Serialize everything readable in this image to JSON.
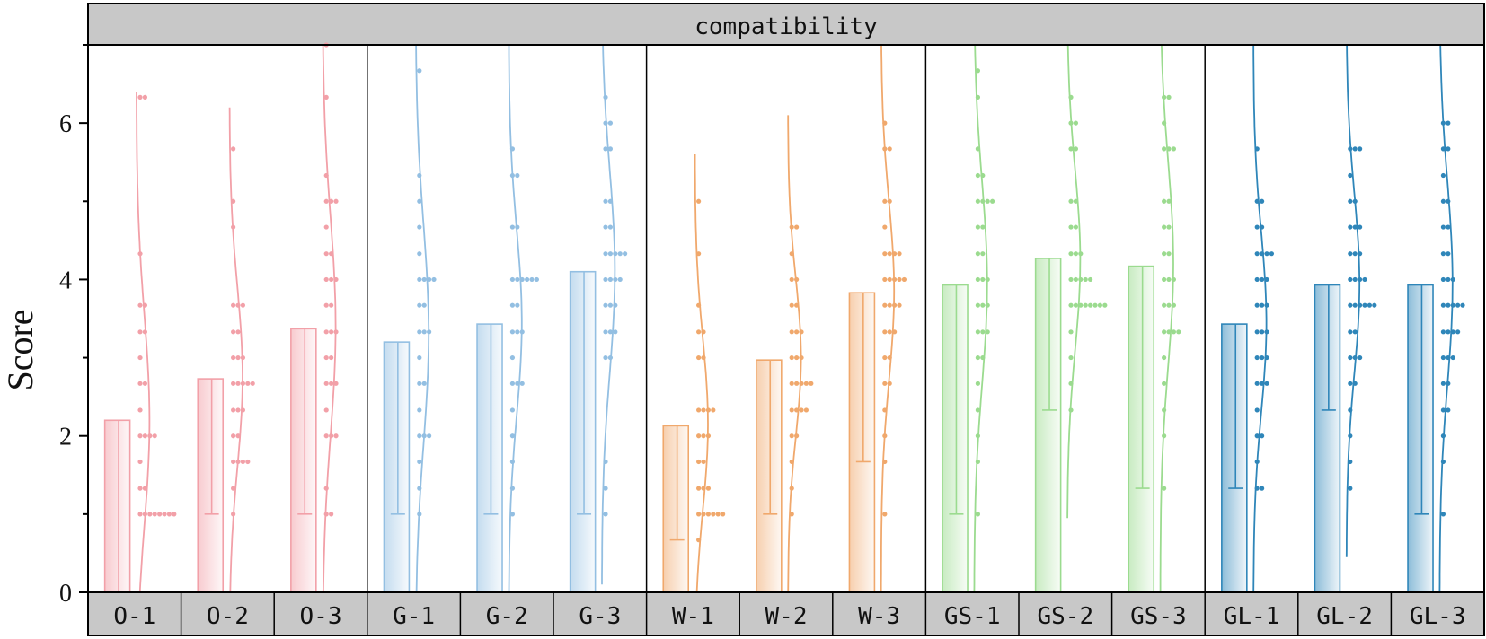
{
  "chart_data": {
    "type": "bar",
    "title": "compatibility",
    "ylabel": "Score",
    "xlabel": "",
    "ylim": [
      0,
      7
    ],
    "yticks": [
      0,
      2,
      4,
      6
    ],
    "grid": false,
    "groups": [
      {
        "name": "O",
        "color": "#f2a0a8",
        "categories": [
          "O-1",
          "O-2",
          "O-3"
        ]
      },
      {
        "name": "G",
        "color": "#93bfe2",
        "categories": [
          "G-1",
          "G-2",
          "G-3"
        ]
      },
      {
        "name": "W",
        "color": "#f0a86c",
        "categories": [
          "W-1",
          "W-2",
          "W-3"
        ]
      },
      {
        "name": "GS",
        "color": "#9bdb8f",
        "categories": [
          "GS-1",
          "GS-2",
          "GS-3"
        ]
      },
      {
        "name": "GL",
        "color": "#2f86b9",
        "categories": [
          "GL-1",
          "GL-2",
          "GL-3"
        ]
      }
    ],
    "categories": [
      "O-1",
      "O-2",
      "O-3",
      "G-1",
      "G-2",
      "G-3",
      "W-1",
      "W-2",
      "W-3",
      "GS-1",
      "GS-2",
      "GS-3",
      "GL-1",
      "GL-2",
      "GL-3"
    ],
    "values": [
      2.2,
      2.73,
      3.37,
      3.2,
      3.43,
      4.1,
      2.13,
      2.97,
      3.83,
      3.93,
      4.27,
      4.17,
      3.43,
      3.93,
      3.93
    ],
    "error_low": [
      0,
      1.0,
      1.0,
      1.0,
      1.0,
      1.0,
      0.67,
      1.0,
      1.67,
      1.0,
      2.33,
      1.33,
      1.33,
      2.33,
      1.0
    ],
    "points": [
      [
        1,
        1,
        1,
        1,
        1,
        1,
        1,
        1,
        1.33,
        1.33,
        1.67,
        2,
        2,
        2,
        2,
        2.33,
        2.67,
        2.67,
        3,
        3.33,
        3.33,
        3.67,
        3.67,
        4.33,
        6.33,
        6.33
      ],
      [
        1,
        1.33,
        1.67,
        1.67,
        1.67,
        1.67,
        2,
        2,
        2.33,
        2.33,
        2.33,
        2.67,
        2.67,
        2.67,
        2.67,
        2.67,
        3,
        3,
        3,
        3.33,
        3.33,
        3.67,
        3.67,
        3.67,
        4.67,
        5,
        5.67
      ],
      [
        1,
        1,
        1.33,
        2,
        2,
        2,
        2.33,
        2.67,
        2.67,
        2.67,
        3,
        3,
        3.33,
        3.33,
        3.33,
        3.67,
        3.67,
        4,
        4,
        4,
        4.33,
        4.33,
        4.67,
        5,
        5,
        5,
        5.33,
        6.33,
        7
      ],
      [
        1,
        1.33,
        1.67,
        2,
        2,
        2,
        2.33,
        2.67,
        2.67,
        3,
        3.33,
        3.33,
        3.33,
        3.67,
        3.67,
        4,
        4,
        4,
        4,
        4.33,
        4.67,
        5,
        5.33,
        6.67
      ],
      [
        1,
        1.33,
        1.67,
        2,
        2.33,
        2.67,
        2.67,
        2.67,
        3,
        3.33,
        3.33,
        3.33,
        3.67,
        3.67,
        4,
        4,
        4,
        4,
        4,
        4,
        4.67,
        4.67,
        5.33,
        5.33,
        5.67
      ],
      [
        1,
        1.33,
        1.67,
        3,
        3,
        3.33,
        3.33,
        3.33,
        3.67,
        3.67,
        3.67,
        4,
        4,
        4,
        4,
        4.33,
        4.33,
        4.33,
        4.33,
        4.33,
        4.67,
        4.67,
        5,
        5,
        5.67,
        5.67,
        6,
        6,
        6.33
      ],
      [
        0.67,
        1,
        1,
        1,
        1,
        1,
        1,
        1.33,
        1.33,
        1.33,
        1.67,
        1.67,
        2,
        2,
        2,
        2.33,
        2.33,
        2.33,
        2.33,
        3,
        3,
        3.33,
        3.33,
        3.67,
        4.33,
        5
      ],
      [
        1,
        1.33,
        1.67,
        2,
        2,
        2.33,
        2.33,
        2.33,
        2.33,
        2.67,
        2.67,
        2.67,
        2.67,
        2.67,
        3,
        3,
        3,
        3.33,
        3.33,
        3.33,
        3.67,
        3.67,
        4,
        4,
        4.33,
        4.67,
        4.67
      ],
      [
        1,
        1.67,
        2,
        2.33,
        2.67,
        2.67,
        3,
        3,
        3.33,
        3.33,
        3.33,
        3.67,
        3.67,
        3.67,
        3.67,
        4,
        4,
        4,
        4,
        4,
        4.33,
        4.33,
        4.33,
        4.33,
        4.67,
        5,
        5,
        5.67,
        5.67,
        6
      ],
      [
        1,
        1.67,
        2,
        2.33,
        2.67,
        3,
        3,
        3.33,
        3.33,
        3.33,
        3.67,
        3.67,
        3.67,
        4,
        4,
        4,
        4.33,
        4.33,
        4.67,
        4.67,
        5,
        5,
        5,
        5,
        5.33,
        5.33,
        5.67,
        6.33,
        6.67
      ],
      [
        2.33,
        2.67,
        3,
        3.33,
        3.67,
        3.67,
        3.67,
        3.67,
        3.67,
        3.67,
        3.67,
        3.67,
        4,
        4,
        4,
        4,
        4,
        4.33,
        4.33,
        4.33,
        4.67,
        4.67,
        5,
        5,
        5.67,
        5.67,
        6,
        6,
        6.33
      ],
      [
        1.33,
        2,
        2.33,
        2.67,
        3,
        3.33,
        3.33,
        3.33,
        3.33,
        3.67,
        3.67,
        3.67,
        4,
        4,
        4,
        4.33,
        4.33,
        4.67,
        4.67,
        5,
        5,
        5.67,
        5.67,
        5.67,
        6,
        6.33,
        6.33
      ],
      [
        1.33,
        1.33,
        1.67,
        2,
        2,
        2.33,
        2.67,
        2.67,
        2.67,
        3,
        3,
        3,
        3.33,
        3.33,
        3.33,
        3.67,
        3.67,
        3.67,
        4,
        4,
        4,
        4.33,
        4.33,
        4.33,
        4.33,
        4.67,
        4.67,
        5,
        5,
        5.67
      ],
      [
        1.33,
        1.67,
        2,
        2.33,
        2.67,
        2.67,
        3,
        3,
        3,
        3.33,
        3.33,
        3.67,
        3.67,
        3.67,
        3.67,
        3.67,
        3.67,
        4,
        4,
        4,
        4,
        4.33,
        4.33,
        4.33,
        4.67,
        4.67,
        4.67,
        5,
        5,
        5.33,
        5.67,
        5.67,
        5.67
      ],
      [
        1,
        1.67,
        2,
        2.33,
        2.33,
        2.67,
        2.67,
        3,
        3,
        3,
        3.33,
        3.33,
        3.33,
        3.33,
        3.67,
        3.67,
        3.67,
        3.67,
        3.67,
        4,
        4,
        4,
        4.33,
        4.33,
        4.67,
        4.67,
        5,
        5,
        5.33,
        5.67,
        5.67,
        6,
        6
      ]
    ],
    "curve": [
      {
        "mean": 2.2,
        "sd": 1.35,
        "ymin": 0,
        "ymax": 6.4
      },
      {
        "mean": 2.75,
        "sd": 1.15,
        "ymin": 0,
        "ymax": 6.2
      },
      {
        "mean": 3.4,
        "sd": 1.4,
        "ymin": 0,
        "ymax": 7
      },
      {
        "mean": 3.3,
        "sd": 1.4,
        "ymin": 0,
        "ymax": 7
      },
      {
        "mean": 3.45,
        "sd": 1.2,
        "ymin": 0,
        "ymax": 7
      },
      {
        "mean": 4.1,
        "sd": 1.3,
        "ymin": 0.1,
        "ymax": 7
      },
      {
        "mean": 2.15,
        "sd": 1.1,
        "ymin": 0,
        "ymax": 5.6
      },
      {
        "mean": 3.0,
        "sd": 1.0,
        "ymin": 0,
        "ymax": 6.1
      },
      {
        "mean": 3.85,
        "sd": 1.15,
        "ymin": 0,
        "ymax": 7
      },
      {
        "mean": 3.95,
        "sd": 1.3,
        "ymin": 0,
        "ymax": 7
      },
      {
        "mean": 4.25,
        "sd": 1.15,
        "ymin": 0.95,
        "ymax": 7
      },
      {
        "mean": 4.2,
        "sd": 1.3,
        "ymin": 0,
        "ymax": 7
      },
      {
        "mean": 3.45,
        "sd": 1.15,
        "ymin": 0,
        "ymax": 7
      },
      {
        "mean": 3.95,
        "sd": 1.15,
        "ymin": 0.45,
        "ymax": 7
      },
      {
        "mean": 3.95,
        "sd": 1.3,
        "ymin": 0,
        "ymax": 7
      }
    ]
  }
}
